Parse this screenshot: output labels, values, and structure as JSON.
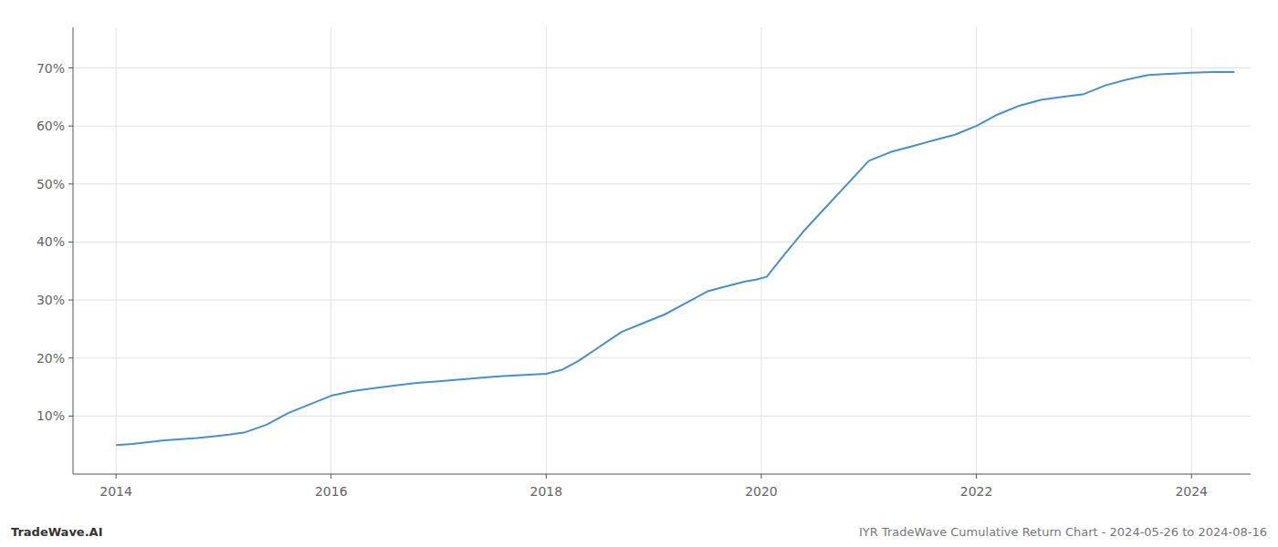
{
  "chart_data": {
    "type": "line",
    "annotations": [
      "TradeWave.AI",
      "IYR TradeWave Cumulative Return Chart - 2024-05-26 to 2024-08-16"
    ],
    "color": "#4a90c4",
    "grid": true,
    "x": [
      2014.0,
      2014.15,
      2014.3,
      2014.45,
      2014.6,
      2014.75,
      2014.9,
      2015.05,
      2015.2,
      2015.4,
      2015.6,
      2015.8,
      2016.0,
      2016.2,
      2016.4,
      2016.6,
      2016.8,
      2017.0,
      2017.2,
      2017.4,
      2017.6,
      2017.8,
      2018.0,
      2018.15,
      2018.3,
      2018.5,
      2018.7,
      2018.9,
      2019.1,
      2019.3,
      2019.5,
      2019.7,
      2019.85,
      2019.95,
      2020.05,
      2020.2,
      2020.4,
      2020.6,
      2020.8,
      2021.0,
      2021.2,
      2021.4,
      2021.6,
      2021.8,
      2022.0,
      2022.2,
      2022.4,
      2022.5,
      2022.6,
      2022.8,
      2023.0,
      2023.2,
      2023.4,
      2023.6,
      2023.8,
      2024.0,
      2024.2,
      2024.4
    ],
    "values": [
      5.0,
      5.2,
      5.5,
      5.8,
      6.0,
      6.2,
      6.5,
      6.8,
      7.2,
      8.5,
      10.5,
      12.0,
      13.5,
      14.3,
      14.8,
      15.3,
      15.7,
      16.0,
      16.3,
      16.6,
      16.9,
      17.1,
      17.3,
      18.0,
      19.5,
      22.0,
      24.5,
      26.0,
      27.5,
      29.5,
      31.5,
      32.5,
      33.2,
      33.5,
      34.0,
      37.5,
      42.0,
      46.0,
      50.0,
      54.0,
      55.5,
      56.5,
      57.5,
      58.5,
      60.0,
      62.0,
      63.5,
      64.0,
      64.5,
      65.0,
      65.5,
      67.0,
      68.0,
      68.8,
      69.0,
      69.2,
      69.3,
      69.3
    ],
    "xlim": [
      2013.6,
      2024.55
    ],
    "ylim": [
      0,
      77
    ],
    "xticks": [
      2014,
      2016,
      2018,
      2020,
      2022,
      2024
    ],
    "yticks": [
      {
        "value": 10,
        "label": "10%"
      },
      {
        "value": 20,
        "label": "20%"
      },
      {
        "value": 30,
        "label": "30%"
      },
      {
        "value": 40,
        "label": "40%"
      },
      {
        "value": 50,
        "label": "50%"
      },
      {
        "value": 60,
        "label": "60%"
      },
      {
        "value": 70,
        "label": "70%"
      }
    ]
  }
}
